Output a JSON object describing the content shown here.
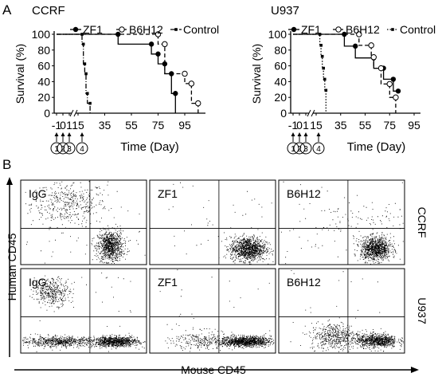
{
  "chart_data": [
    {
      "type": "line",
      "panel_letter": "A",
      "title": "CCRF",
      "xlabel": "Time (Day)",
      "ylabel": "Survival (%)",
      "xticks": [
        "-1",
        "0",
        "1",
        "15",
        "35",
        "55",
        "75",
        "95"
      ],
      "yticks": [
        "0",
        "20",
        "40",
        "60",
        "80",
        "100"
      ],
      "ylim": [
        0,
        100
      ],
      "xlim": [
        -1,
        108
      ],
      "treatment_markers": [
        "1",
        "2",
        "3",
        "4"
      ],
      "series": [
        {
          "name": "ZF1",
          "style": "solid",
          "marker": "filled-circle",
          "x": [
            -1,
            45,
            45,
            70,
            70,
            75,
            75,
            80,
            80,
            85,
            85,
            88,
            88
          ],
          "y": [
            100,
            100,
            87.5,
            87.5,
            75,
            75,
            62.5,
            62.5,
            50,
            50,
            25,
            25,
            0
          ]
        },
        {
          "name": "B6H12",
          "style": "dashed",
          "marker": "open-circle",
          "x": [
            -1,
            75,
            75,
            80,
            80,
            95,
            95,
            100,
            100,
            105,
            105
          ],
          "y": [
            100,
            100,
            87.5,
            87.5,
            50,
            50,
            37.5,
            37.5,
            12.5,
            12.5,
            0
          ]
        },
        {
          "name": "Control",
          "style": "dash-dot",
          "marker": "small-square",
          "x": [
            -1,
            18,
            18,
            19,
            19,
            20,
            20,
            21,
            21,
            22,
            22,
            24,
            24
          ],
          "y": [
            100,
            100,
            87.5,
            87.5,
            62.5,
            62.5,
            50,
            50,
            25,
            25,
            12.5,
            12.5,
            0
          ]
        }
      ]
    },
    {
      "type": "line",
      "title": "U937",
      "xlabel": "Time (Day)",
      "ylabel": "Survival (%)",
      "xticks": [
        "-1",
        "0",
        "1",
        "15",
        "35",
        "55",
        "75",
        "95"
      ],
      "yticks": [
        "0",
        "20",
        "40",
        "60",
        "80",
        "100"
      ],
      "ylim": [
        0,
        100
      ],
      "xlim": [
        -1,
        98
      ],
      "treatment_markers": [
        "1",
        "2",
        "3",
        "4"
      ],
      "series": [
        {
          "name": "ZF1",
          "style": "solid",
          "marker": "filled-circle",
          "x": [
            -1,
            38,
            38,
            47,
            47,
            62,
            62,
            70,
            70,
            78,
            78,
            82,
            82
          ],
          "y": [
            100,
            100,
            85,
            85,
            70,
            70,
            57,
            57,
            43,
            43,
            28,
            28,
            28
          ]
        },
        {
          "name": "B6H12",
          "style": "dashed",
          "marker": "open-circle",
          "x": [
            -1,
            50,
            50,
            60,
            60,
            62,
            62,
            68,
            68,
            75,
            75,
            80,
            80
          ],
          "y": [
            100,
            100,
            86,
            86,
            71,
            71,
            57,
            57,
            37,
            37,
            20,
            20,
            0
          ]
        },
        {
          "name": "Control",
          "style": "dotted",
          "marker": "small-square",
          "x": [
            -1,
            18,
            18,
            19,
            19,
            20,
            20,
            21,
            21,
            22,
            22,
            23,
            23
          ],
          "y": [
            100,
            100,
            86,
            86,
            72,
            72,
            57,
            57,
            43,
            43,
            29,
            29,
            0
          ]
        }
      ]
    },
    {
      "type": "scatter",
      "panel_letter": "B",
      "xlabel": "Mouse CD45",
      "ylabel": "Human CD45",
      "rows": [
        "CCRF",
        "U937"
      ],
      "columns": [
        "IgG",
        "ZF1",
        "B6H12"
      ],
      "units": "fraction of gate area (0–1), y measured upward",
      "gates": {
        "x": 0.55,
        "y": 0.43
      },
      "cells": [
        {
          "row": "CCRF",
          "col": "IgG",
          "label": "IgG",
          "clusters": [
            {
              "cx": 0.38,
              "cy": 0.72,
              "sx": 0.15,
              "sy": 0.13,
              "n": 420
            },
            {
              "cx": 0.71,
              "cy": 0.22,
              "sx": 0.05,
              "sy": 0.09,
              "n": 900
            },
            {
              "cx": 0.5,
              "cy": 0.5,
              "sx": 0.5,
              "sy": 0.5,
              "n": 50,
              "uniform": true
            }
          ]
        },
        {
          "row": "CCRF",
          "col": "ZF1",
          "label": "ZF1",
          "clusters": [
            {
              "cx": 0.78,
              "cy": 0.19,
              "sx": 0.07,
              "sy": 0.07,
              "n": 1100
            },
            {
              "cx": 0.5,
              "cy": 0.5,
              "sx": 0.5,
              "sy": 0.5,
              "n": 40,
              "uniform": true
            }
          ]
        },
        {
          "row": "CCRF",
          "col": "B6H12",
          "label": "B6H12",
          "clusters": [
            {
              "cx": 0.77,
              "cy": 0.19,
              "sx": 0.06,
              "sy": 0.07,
              "n": 1000
            },
            {
              "cx": 0.62,
              "cy": 0.5,
              "sx": 0.2,
              "sy": 0.12,
              "n": 90
            },
            {
              "cx": 0.5,
              "cy": 0.5,
              "sx": 0.5,
              "sy": 0.5,
              "n": 40,
              "uniform": true
            }
          ]
        },
        {
          "row": "U937",
          "col": "IgG",
          "label": "IgG",
          "clusters": [
            {
              "cx": 0.25,
              "cy": 0.73,
              "sx": 0.07,
              "sy": 0.08,
              "n": 380
            },
            {
              "cx": 0.3,
              "cy": 0.14,
              "sx": 0.15,
              "sy": 0.03,
              "n": 650
            },
            {
              "cx": 0.75,
              "cy": 0.14,
              "sx": 0.09,
              "sy": 0.03,
              "n": 900
            },
            {
              "cx": 0.5,
              "cy": 0.5,
              "sx": 0.5,
              "sy": 0.5,
              "n": 40,
              "uniform": true
            }
          ]
        },
        {
          "row": "U937",
          "col": "ZF1",
          "label": "ZF1",
          "clusters": [
            {
              "cx": 0.42,
              "cy": 0.15,
              "sx": 0.12,
              "sy": 0.06,
              "n": 250
            },
            {
              "cx": 0.76,
              "cy": 0.14,
              "sx": 0.1,
              "sy": 0.03,
              "n": 1100
            },
            {
              "cx": 0.5,
              "cy": 0.5,
              "sx": 0.5,
              "sy": 0.5,
              "n": 30,
              "uniform": true
            }
          ]
        },
        {
          "row": "U937",
          "col": "B6H12",
          "label": "B6H12",
          "clusters": [
            {
              "cx": 0.45,
              "cy": 0.2,
              "sx": 0.1,
              "sy": 0.08,
              "n": 500
            },
            {
              "cx": 0.78,
              "cy": 0.15,
              "sx": 0.08,
              "sy": 0.04,
              "n": 800
            },
            {
              "cx": 0.5,
              "cy": 0.5,
              "sx": 0.5,
              "sy": 0.5,
              "n": 30,
              "uniform": true
            }
          ]
        }
      ]
    }
  ]
}
